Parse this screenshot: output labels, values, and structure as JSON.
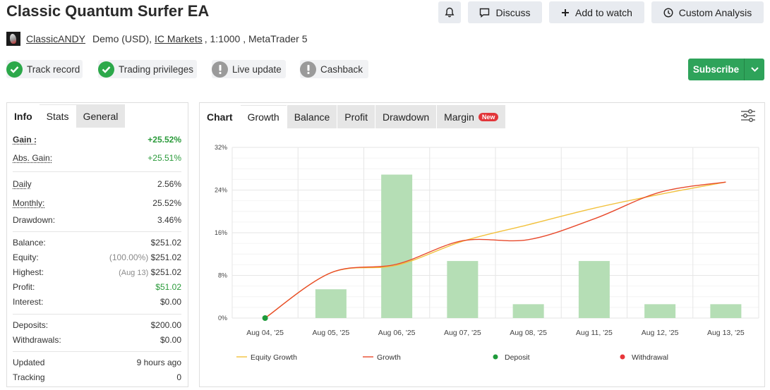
{
  "header": {
    "title": "Classic Quantum Surfer EA",
    "buttons": {
      "discuss": "Discuss",
      "watch": "Add to watch",
      "analysis": "Custom Analysis"
    }
  },
  "account": {
    "owner": "ClassicANDY",
    "type": "Demo (USD),",
    "broker": "IC Markets",
    "details": ", 1:1000 , MetaTrader 5"
  },
  "badges": [
    {
      "label": "Track record",
      "status": "ok"
    },
    {
      "label": "Trading privileges",
      "status": "ok"
    },
    {
      "label": "Live update",
      "status": "warn"
    },
    {
      "label": "Cashback",
      "status": "warn"
    }
  ],
  "subscribe": {
    "label": "Subscribe"
  },
  "left_tabs": {
    "info": "Info",
    "stats": "Stats",
    "general": "General"
  },
  "stats": {
    "gain": {
      "label": "Gain :",
      "value": "+25.52%"
    },
    "abs_gain": {
      "label": "Abs. Gain:",
      "value": "+25.51%"
    },
    "daily": {
      "label": "Daily",
      "value": "2.56%"
    },
    "monthly": {
      "label": "Monthly:",
      "value": "25.52%"
    },
    "drawdown": {
      "label": "Drawdown:",
      "value": "3.46%"
    },
    "balance": {
      "label": "Balance:",
      "value": "$251.02"
    },
    "equity": {
      "label": "Equity:",
      "note": "(100.00%)",
      "value": "$251.02"
    },
    "highest": {
      "label": "Highest:",
      "note": "(Aug 13)",
      "value": "$251.02"
    },
    "profit": {
      "label": "Profit:",
      "value": "$51.02"
    },
    "interest": {
      "label": "Interest:",
      "value": "$0.00"
    },
    "deposits": {
      "label": "Deposits:",
      "value": "$200.00"
    },
    "withdrawals": {
      "label": "Withdrawals:",
      "value": "$0.00"
    },
    "updated": {
      "label": "Updated",
      "value": "9 hours ago"
    },
    "tracking": {
      "label": "Tracking",
      "value": "0"
    }
  },
  "chart_tabs": {
    "chart": "Chart",
    "growth": "Growth",
    "balance": "Balance",
    "profit": "Profit",
    "drawdown": "Drawdown",
    "margin": "Margin",
    "margin_badge": "New"
  },
  "colors": {
    "accent": "#2ea35a",
    "bar": "#b5deb5",
    "equity_line": "#f2c13c",
    "growth_line": "#e84a2c",
    "deposit": "#1e9a3a",
    "withdrawal": "#e8363a"
  },
  "chart_data": {
    "type": "bar",
    "categories": [
      "Aug 04, '25",
      "Aug 05, '25",
      "Aug 06, '25",
      "Aug 07, '25",
      "Aug 08, '25",
      "Aug 11, '25",
      "Aug 12, '25",
      "Aug 13, '25"
    ],
    "y_ticks": [
      0,
      8,
      16,
      24,
      32
    ],
    "y_tick_labels": [
      "0%",
      "8%",
      "16%",
      "24%",
      "32%"
    ],
    "ylim": [
      0,
      32
    ],
    "grid": true,
    "legend_position": "bottom",
    "series": [
      {
        "name": "",
        "type": "bar",
        "values": [
          0,
          5.4,
          26.9,
          10.7,
          2.6,
          10.7,
          2.6,
          2.6
        ]
      },
      {
        "name": "Equity Growth",
        "type": "line",
        "values": [
          0,
          8.5,
          9.9,
          14.4,
          17.5,
          20.6,
          23.2,
          25.5
        ]
      },
      {
        "name": "Growth",
        "type": "line",
        "values": [
          0,
          8.5,
          10.1,
          14.5,
          14.7,
          18.6,
          23.6,
          25.5
        ]
      }
    ],
    "markers": [
      {
        "name": "Deposit",
        "category_index": 0,
        "value": 0
      }
    ],
    "legend": [
      "Equity Growth",
      "Growth",
      "Deposit",
      "Withdrawal"
    ]
  }
}
